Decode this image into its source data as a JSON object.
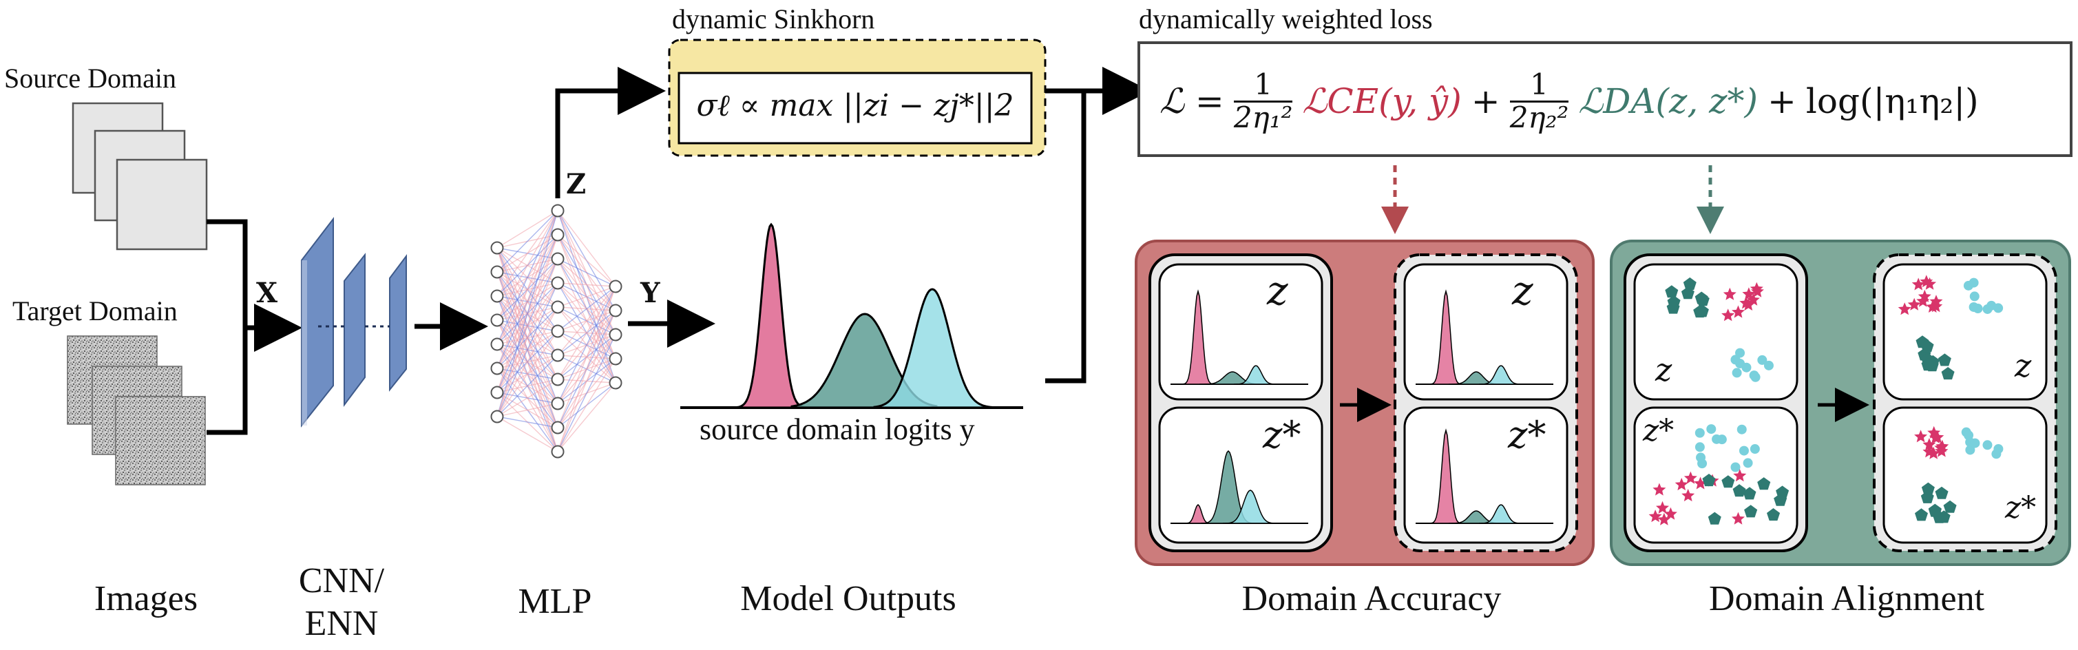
{
  "labels": {
    "source_domain": "Source Domain",
    "target_domain": "Target Domain",
    "x": "X",
    "z": "Z",
    "y": "Y",
    "dynamic_sinkhorn": "dynamic Sinkhorn",
    "sinkhorn_formula": "σℓ ∝ max ||zi − zj*||2",
    "weighted_loss": "dynamically weighted loss",
    "logits_caption": "source domain logits y",
    "z_label": "z",
    "zstar_label": "z*"
  },
  "loss": {
    "lhs": "ℒ =",
    "t1_num": "1",
    "t1_den": "2η₁²",
    "t1_term": "ℒCE(y, ŷ)",
    "plus1": "+",
    "t2_num": "1",
    "t2_den": "2η₂²",
    "t2_term": "ℒDA(z, z*)",
    "plus2": "+",
    "t3": "log(|η₁η₂|)"
  },
  "bottom": {
    "images": "Images",
    "cnn_line1": "CNN/",
    "cnn_line2": "ENN",
    "mlp": "MLP",
    "model_outputs": "Model Outputs",
    "domain_accuracy": "Domain Accuracy",
    "domain_alignment": "Domain Alignment"
  },
  "colors": {
    "pink": "#e06d95",
    "teal": "#5e9d94",
    "cyan": "#8fdbe3",
    "sinkhorn_fill": "#f6e7a3",
    "accuracy_panel": "#cc7c7c",
    "alignment_panel": "#7fa99a",
    "ce_red": "#c0334a",
    "da_teal": "#3f7a6d"
  }
}
